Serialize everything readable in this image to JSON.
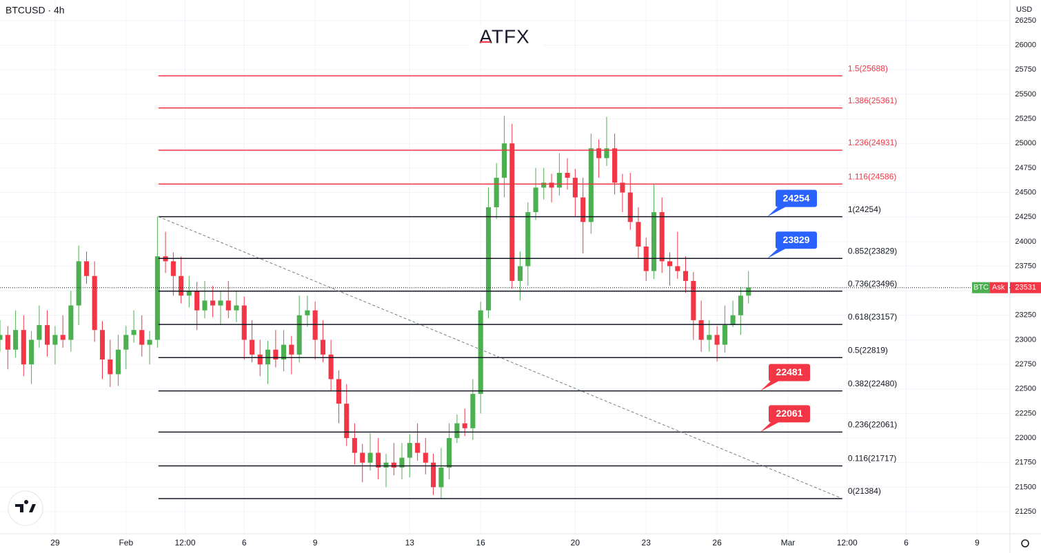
{
  "chart_data": {
    "type": "candlestick",
    "title": "BTCUSD · 4h",
    "logo": "ATFX",
    "currency": "USD",
    "up_color": "#4caf50",
    "down_color": "#f23645",
    "grid": true,
    "xlim": [
      -2.33,
      40.39
    ],
    "ylim": [
      21026,
      26460
    ],
    "xticks": [
      {
        "value": 0,
        "label": "29"
      },
      {
        "value": 3,
        "label": "Feb"
      },
      {
        "value": 5.5,
        "label": "12:00"
      },
      {
        "value": 8,
        "label": "6"
      },
      {
        "value": 11,
        "label": "9"
      },
      {
        "value": 15,
        "label": "13"
      },
      {
        "value": 18,
        "label": "16"
      },
      {
        "value": 22,
        "label": "20"
      },
      {
        "value": 25,
        "label": "23"
      },
      {
        "value": 28,
        "label": "26"
      },
      {
        "value": 31,
        "label": "Mar"
      },
      {
        "value": 33.5,
        "label": "12:00"
      },
      {
        "value": 36,
        "label": "6"
      },
      {
        "value": 39,
        "label": "9"
      }
    ],
    "yticks": [
      21250,
      21500,
      21750,
      22000,
      22250,
      22500,
      22750,
      23000,
      23250,
      23500,
      23750,
      24000,
      24250,
      24500,
      24750,
      25000,
      25250,
      25500,
      25750,
      26000,
      26250
    ],
    "x": [
      -2.33,
      -2,
      -1.67,
      -1.33,
      -1,
      -0.67,
      -0.33,
      0,
      0.33,
      0.67,
      1,
      1.33,
      1.67,
      2,
      2.33,
      2.67,
      3,
      3.33,
      3.67,
      4,
      4.33,
      4.67,
      5,
      5.33,
      5.67,
      6,
      6.33,
      6.67,
      7,
      7.33,
      7.67,
      8,
      8.33,
      8.67,
      9,
      9.33,
      9.67,
      10,
      10.33,
      10.67,
      11,
      11.33,
      11.67,
      12,
      12.33,
      12.67,
      13,
      13.33,
      13.67,
      14,
      14.33,
      14.67,
      15,
      15.33,
      15.67,
      16,
      16.33,
      16.67,
      17,
      17.33,
      17.67,
      18,
      18.33,
      18.67,
      19,
      19.33,
      19.67,
      20,
      20.33,
      20.67,
      21,
      21.33,
      21.67,
      22,
      22.33,
      22.67,
      23,
      23.33,
      23.67,
      24,
      24.33,
      24.67,
      25,
      25.33,
      25.67,
      26,
      26.33,
      26.67,
      27,
      27.33,
      27.67,
      28,
      28.33,
      28.67,
      29,
      29.33
    ],
    "open": [
      23000,
      23050,
      22900,
      23100,
      22750,
      23000,
      23150,
      22950,
      23050,
      23000,
      23350,
      23800,
      23650,
      23100,
      22800,
      22650,
      22900,
      23050,
      23100,
      22950,
      23000,
      23850,
      23800,
      23650,
      23450,
      23500,
      23300,
      23400,
      23350,
      23400,
      23300,
      23350,
      23000,
      22850,
      22750,
      22900,
      22800,
      22950,
      22850,
      23250,
      23300,
      23000,
      22850,
      22600,
      22350,
      22000,
      21850,
      21750,
      21850,
      21700,
      21750,
      21700,
      21800,
      21950,
      21850,
      21750,
      21500,
      21700,
      22000,
      22150,
      22100,
      22450,
      23300,
      24350,
      24650,
      25000,
      23600,
      23750,
      24300,
      24550,
      24600,
      24550,
      24700,
      24650,
      24450,
      24200,
      24950,
      24850,
      24950,
      24600,
      24500,
      24200,
      23950,
      23700,
      24300,
      23800,
      23750,
      23700,
      23600,
      23200,
      23000,
      23050,
      22950,
      23150,
      23250,
      23450
    ],
    "high": [
      23200,
      23140,
      23300,
      23250,
      23090,
      23350,
      23300,
      23140,
      23250,
      23500,
      23960,
      23900,
      23800,
      23190,
      23000,
      23050,
      23140,
      23300,
      23250,
      23090,
      24254,
      24100,
      23890,
      23850,
      23650,
      23590,
      23600,
      23550,
      23490,
      23600,
      23500,
      23440,
      23200,
      23000,
      22990,
      23100,
      23100,
      23040,
      23450,
      23450,
      23390,
      23200,
      23000,
      22690,
      22550,
      22150,
      21940,
      22050,
      22000,
      21840,
      21950,
      21950,
      22040,
      22150,
      22000,
      21840,
      21900,
      22150,
      22240,
      22300,
      22600,
      23390,
      24550,
      24800,
      25280,
      25200,
      23900,
      24400,
      24750,
      24750,
      24690,
      24900,
      24850,
      24740,
      24650,
      25100,
      25040,
      25270,
      25100,
      24690,
      24700,
      24350,
      24040,
      24580,
      24450,
      23890,
      24100,
      23850,
      23690,
      23400,
      23200,
      23140,
      23350,
      23400,
      23540,
      23700
    ],
    "low": [
      22880,
      22700,
      22820,
      22630,
      22550,
      22920,
      22830,
      22750,
      22920,
      22880,
      23150,
      23570,
      22980,
      22600,
      22520,
      22530,
      22700,
      22970,
      22830,
      22750,
      22920,
      23680,
      23450,
      23370,
      23330,
      23100,
      23220,
      23230,
      23150,
      23220,
      23180,
      22800,
      22770,
      22630,
      22550,
      22720,
      22680,
      22650,
      22770,
      23130,
      22800,
      22770,
      22480,
      22150,
      21920,
      21730,
      21550,
      21670,
      21580,
      21500,
      21620,
      21580,
      21600,
      21770,
      21630,
      21420,
      21384,
      21580,
      21950,
      22020,
      21980,
      22250,
      23220,
      24230,
      24450,
      23520,
      23400,
      23550,
      24220,
      24430,
      24400,
      24470,
      24530,
      24250,
      23880,
      24080,
      24650,
      24770,
      24480,
      24300,
      24120,
      23830,
      23600,
      23620,
      23680,
      23550,
      23620,
      23480,
      23000,
      22880,
      22880,
      22780,
      22870,
      23130,
      23050,
      23370
    ],
    "close": [
      23050,
      22900,
      23100,
      22750,
      23000,
      23150,
      22950,
      23050,
      23000,
      23350,
      23800,
      23650,
      23100,
      22800,
      22650,
      22900,
      23050,
      23100,
      22950,
      23000,
      23850,
      23800,
      23650,
      23450,
      23500,
      23300,
      23400,
      23350,
      23400,
      23300,
      23350,
      23000,
      22850,
      22750,
      22900,
      22800,
      22950,
      22850,
      23250,
      23300,
      23000,
      22850,
      22600,
      22350,
      22000,
      21850,
      21750,
      21850,
      21700,
      21750,
      21700,
      21800,
      21950,
      21850,
      21750,
      21500,
      21700,
      22000,
      22150,
      22100,
      22450,
      23300,
      24350,
      24650,
      25000,
      23600,
      23750,
      24300,
      24550,
      24600,
      24550,
      24700,
      24650,
      24450,
      24200,
      24950,
      24850,
      24950,
      24600,
      24500,
      24200,
      23950,
      23700,
      24300,
      23800,
      23750,
      23700,
      23600,
      23200,
      23000,
      23050,
      22950,
      23150,
      23250,
      23450,
      23531
    ],
    "levels_x": [
      4.37,
      33.3
    ],
    "levels": [
      {
        "label": "1.5(25688)",
        "value": 25688,
        "color": "#f23645"
      },
      {
        "label": "1.386(25361)",
        "value": 25361,
        "color": "#f23645"
      },
      {
        "label": "1.236(24931)",
        "value": 24931,
        "color": "#f23645"
      },
      {
        "label": "1.116(24586)",
        "value": 24586,
        "color": "#f23645"
      },
      {
        "label": "1(24254)",
        "value": 24254,
        "color": "#131722"
      },
      {
        "label": "0.852(23829)",
        "value": 23829,
        "color": "#131722"
      },
      {
        "label": "0.736(23496)",
        "value": 23496,
        "color": "#131722"
      },
      {
        "label": "0.618(23157)",
        "value": 23157,
        "color": "#131722"
      },
      {
        "label": "0.5(22819)",
        "value": 22819,
        "color": "#131722"
      },
      {
        "label": "0.382(22480)",
        "value": 22480,
        "color": "#131722"
      },
      {
        "label": "0.236(22061)",
        "value": 22061,
        "color": "#131722"
      },
      {
        "label": "0.116(21717)",
        "value": 21717,
        "color": "#131722"
      },
      {
        "label": "0(21384)",
        "value": 21384,
        "color": "#131722"
      }
    ],
    "trendline": {
      "x": [
        4.37,
        33.3
      ],
      "y": [
        24254,
        21384
      ]
    },
    "annotations": [
      {
        "value": 24254,
        "color": "#2962ff"
      },
      {
        "value": 23829,
        "color": "#2962ff"
      },
      {
        "value": 22481,
        "color": "#f23645"
      },
      {
        "value": 22061,
        "color": "#f23645"
      }
    ],
    "price_tag": {
      "symbol": "BTC",
      "side": "Ask"
    }
  }
}
